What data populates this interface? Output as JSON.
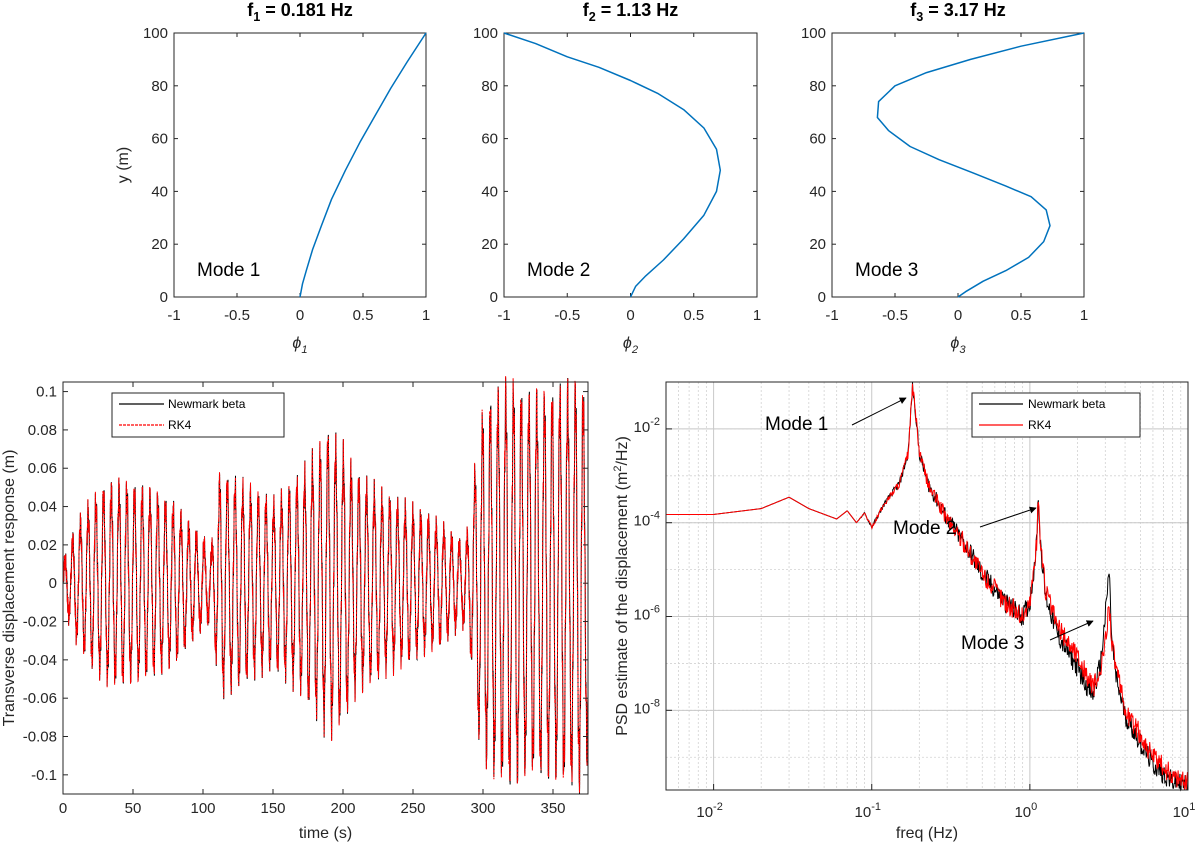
{
  "chart_data": [
    {
      "type": "line",
      "title": "f",
      "title_sub": "1",
      "title_rest": " = 0.181 Hz",
      "xlabel": "ϕ",
      "xlabel_sub": "1",
      "ylabel": "y (m)",
      "xlim": [
        -1,
        1
      ],
      "ylim": [
        0,
        100
      ],
      "xticks": [
        "-1",
        "-0.5",
        "0",
        "0.5",
        "1"
      ],
      "yticks": [
        "0",
        "20",
        "40",
        "60",
        "80",
        "100"
      ],
      "annotation": "Mode 1",
      "line_color": "#0072bd",
      "series": [
        {
          "x": [
            0,
            0.02,
            0.05,
            0.1,
            0.17,
            0.25,
            0.36,
            0.48,
            0.6,
            0.72,
            0.85,
            1.0
          ],
          "y": [
            0,
            5,
            10,
            18,
            27,
            37,
            48,
            59,
            69,
            79,
            89,
            100
          ]
        }
      ]
    },
    {
      "type": "line",
      "title": "f",
      "title_sub": "2",
      "title_rest": " = 1.13 Hz",
      "xlabel": "ϕ",
      "xlabel_sub": "2",
      "xlim": [
        -1,
        1
      ],
      "ylim": [
        0,
        100
      ],
      "xticks": [
        "-1",
        "-0.5",
        "0",
        "0.5",
        "1"
      ],
      "yticks": [
        "0",
        "20",
        "40",
        "60",
        "80",
        "100"
      ],
      "annotation": "Mode 2",
      "line_color": "#0072bd",
      "series": [
        {
          "x": [
            0,
            0.04,
            0.12,
            0.26,
            0.42,
            0.58,
            0.68,
            0.71,
            0.68,
            0.58,
            0.42,
            0.22,
            0.0,
            -0.25,
            -0.5,
            -0.75,
            -1.0
          ],
          "y": [
            0,
            4,
            8,
            14,
            22,
            31,
            40,
            48,
            56,
            64,
            71,
            77,
            82,
            87,
            91,
            96,
            100
          ]
        }
      ]
    },
    {
      "type": "line",
      "title": "f",
      "title_sub": "3",
      "title_rest": " = 3.17 Hz",
      "xlabel": "ϕ",
      "xlabel_sub": "3",
      "xlim": [
        -1,
        1
      ],
      "ylim": [
        0,
        100
      ],
      "xticks": [
        "-1",
        "-0.5",
        "0",
        "0.5",
        "1"
      ],
      "yticks": [
        "0",
        "20",
        "40",
        "60",
        "80",
        "100"
      ],
      "annotation": "Mode 3",
      "line_color": "#0072bd",
      "series": [
        {
          "x": [
            0,
            0.06,
            0.2,
            0.38,
            0.56,
            0.68,
            0.73,
            0.7,
            0.58,
            0.38,
            0.12,
            -0.15,
            -0.38,
            -0.55,
            -0.64,
            -0.63,
            -0.5,
            -0.25,
            0.1,
            0.5,
            1.0
          ],
          "y": [
            0,
            2,
            6,
            10,
            15,
            21,
            27,
            33,
            38,
            42,
            47,
            52,
            57,
            63,
            68,
            74,
            80,
            85,
            90,
            95,
            100
          ]
        }
      ]
    },
    {
      "type": "line",
      "xlabel": "time (s)",
      "ylabel": "Transverse displacement response (m)",
      "xlim": [
        0,
        375
      ],
      "ylim": [
        -0.11,
        0.105
      ],
      "xticks": [
        "0",
        "50",
        "100",
        "150",
        "200",
        "250",
        "300",
        "350"
      ],
      "yticks": [
        "-0.1",
        "-0.08",
        "-0.06",
        "-0.04",
        "-0.02",
        "0",
        "0.02",
        "0.04",
        "0.06",
        "0.08",
        "0.1"
      ],
      "legend": [
        "Newmark beta",
        "RK4"
      ],
      "legend_position": "top-left",
      "colors": [
        "#000000",
        "#ff0000"
      ],
      "oscillation_frequency_hz": 0.181,
      "envelope": {
        "t": [
          0,
          10,
          20,
          30,
          40,
          50,
          60,
          70,
          80,
          90,
          100,
          106,
          112,
          130,
          150,
          170,
          190,
          200,
          210,
          230,
          250,
          270,
          285,
          290,
          297,
          300,
          310,
          320,
          330,
          340,
          350,
          360,
          370,
          375
        ],
        "amp": [
          0.01,
          0.03,
          0.042,
          0.05,
          0.052,
          0.05,
          0.048,
          0.045,
          0.04,
          0.03,
          0.022,
          0.018,
          0.057,
          0.05,
          0.042,
          0.055,
          0.078,
          0.07,
          0.055,
          0.045,
          0.038,
          0.03,
          0.02,
          0.028,
          0.08,
          0.09,
          0.1,
          0.106,
          0.098,
          0.1,
          0.1,
          0.104,
          0.106,
          0.09
        ]
      }
    },
    {
      "type": "line",
      "xscale": "log",
      "yscale": "log",
      "xlabel": "freq (Hz)",
      "ylabel": "PSD estimate of the displacement (m",
      "ylabel_sup": "2",
      "ylabel_rest": "/Hz)",
      "xlim": [
        0.005,
        10
      ],
      "ylim": [
        2e-10,
        0.1
      ],
      "xticks": [
        "10",
        "10",
        "10",
        "10"
      ],
      "xtick_exps": [
        "-2",
        "-1",
        "0",
        "1"
      ],
      "yticks": [
        "10",
        "10",
        "10",
        "10",
        "10"
      ],
      "ytick_exps": [
        "-2",
        "-4",
        "-6",
        "-8",
        ""
      ],
      "grid": true,
      "legend": [
        "Newmark beta",
        "RK4"
      ],
      "legend_position": "top-right",
      "colors": [
        "#000000",
        "#ff0000"
      ],
      "series": [
        {
          "name": "Newmark beta",
          "x": [
            0.005,
            0.01,
            0.02,
            0.03,
            0.04,
            0.06,
            0.07,
            0.08,
            0.09,
            0.1,
            0.12,
            0.15,
            0.17,
            0.181,
            0.19,
            0.2,
            0.23,
            0.3,
            0.4,
            0.5,
            0.7,
            0.9,
            1.0,
            1.1,
            1.13,
            1.16,
            1.25,
            1.5,
            2.0,
            2.5,
            2.8,
            3.0,
            3.17,
            3.3,
            3.5,
            4.0,
            5.0,
            6.0,
            8.0,
            10.0
          ],
          "y": [
            0.00015,
            0.00015,
            0.0002,
            0.00035,
            0.0002,
            0.00012,
            0.00018,
            0.0001,
            0.00016,
            8e-05,
            0.00025,
            0.0007,
            0.003,
            0.08,
            0.02,
            0.003,
            0.0006,
            0.00012,
            3e-05,
            8e-06,
            2e-06,
            1e-06,
            2e-06,
            3e-05,
            0.0004,
            5e-05,
            3e-06,
            4e-07,
            8e-08,
            2e-08,
            1e-07,
            1e-06,
            1e-05,
            3e-07,
            5e-08,
            8e-09,
            2e-09,
            7e-10,
            3e-10,
            2.5e-10
          ]
        },
        {
          "name": "RK4",
          "x": [
            0.005,
            0.01,
            0.02,
            0.03,
            0.04,
            0.06,
            0.07,
            0.08,
            0.09,
            0.1,
            0.12,
            0.15,
            0.17,
            0.181,
            0.19,
            0.2,
            0.23,
            0.3,
            0.4,
            0.5,
            0.7,
            0.9,
            1.0,
            1.1,
            1.13,
            1.16,
            1.25,
            1.5,
            2.0,
            2.5,
            2.8,
            3.0,
            3.17,
            3.3,
            3.5,
            4.0,
            5.0,
            6.0,
            8.0,
            10.0
          ],
          "y": [
            0.00015,
            0.00015,
            0.0002,
            0.00035,
            0.0002,
            0.00012,
            0.00018,
            0.0001,
            0.00016,
            8e-05,
            0.00025,
            0.0007,
            0.003,
            0.08,
            0.02,
            0.003,
            0.0006,
            0.00012,
            3e-05,
            8e-06,
            2e-06,
            1e-06,
            2e-06,
            3e-05,
            0.0004,
            5e-05,
            4e-06,
            6e-07,
            1.5e-07,
            3e-08,
            6e-08,
            3e-07,
            2e-06,
            3e-07,
            8e-08,
            1e-08,
            3e-09,
            1e-09,
            4e-10,
            3e-10
          ]
        }
      ],
      "annotations": [
        "Mode 1",
        "Mode 2",
        "Mode 3"
      ]
    }
  ]
}
